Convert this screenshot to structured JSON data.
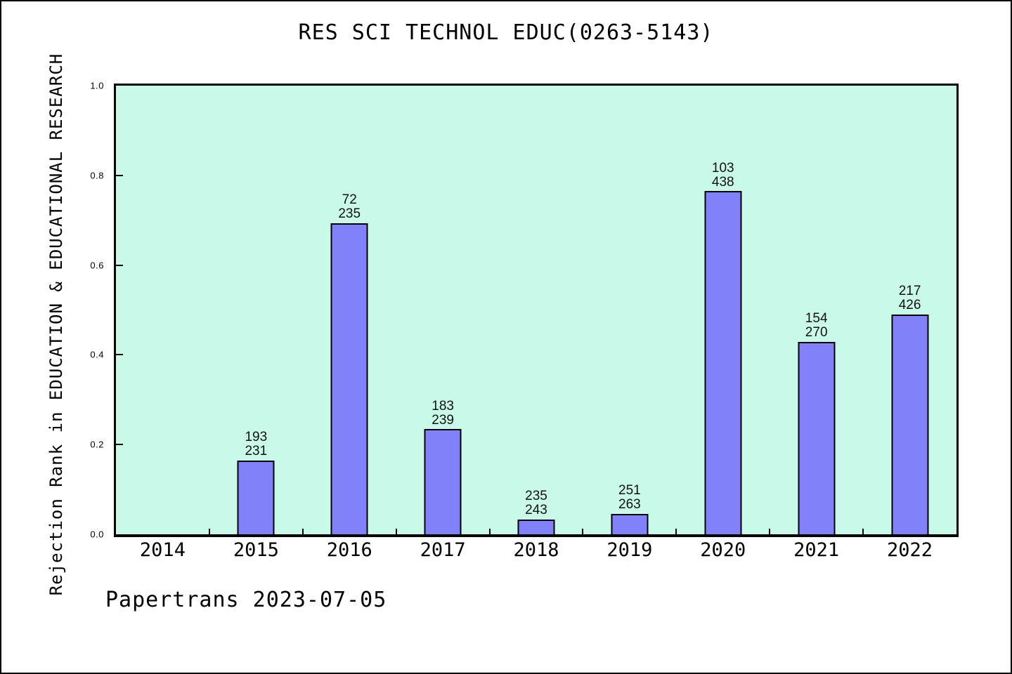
{
  "chart": {
    "title": "RES SCI TECHNOL EDUC(0263-5143)",
    "ylabel": "Rejection Rank in EDUCATION & EDUCATIONAL RESEARCH",
    "footer": "Papertrans 2023-07-05"
  },
  "chart_data": {
    "type": "bar",
    "title": "RES SCI TECHNOL EDUC(0263-5143)",
    "xlabel": "",
    "ylabel": "Rejection Rank in EDUCATION & EDUCATIONAL RESEARCH",
    "ylim": [
      0.0,
      1.0
    ],
    "yticks": [
      0.0,
      0.2,
      0.4,
      0.6,
      0.8,
      1.0
    ],
    "grid": false,
    "legend_position": "none",
    "categories": [
      "2014",
      "2015",
      "2016",
      "2017",
      "2018",
      "2019",
      "2020",
      "2021",
      "2022"
    ],
    "bars": [
      {
        "year": "2014",
        "rank": null,
        "total": null,
        "value": null
      },
      {
        "year": "2015",
        "rank": 193,
        "total": 231,
        "value": 0.1645
      },
      {
        "year": "2016",
        "rank": 72,
        "total": 235,
        "value": 0.6936
      },
      {
        "year": "2017",
        "rank": 183,
        "total": 239,
        "value": 0.2343
      },
      {
        "year": "2018",
        "rank": 235,
        "total": 243,
        "value": 0.0329
      },
      {
        "year": "2019",
        "rank": 251,
        "total": 263,
        "value": 0.0456
      },
      {
        "year": "2020",
        "rank": 103,
        "total": 438,
        "value": 0.7648
      },
      {
        "year": "2021",
        "rank": 154,
        "total": 270,
        "value": 0.4296
      },
      {
        "year": "2022",
        "rank": 217,
        "total": 426,
        "value": 0.4906
      }
    ],
    "colors": {
      "bar_fill": "#8181fa",
      "bar_edge": "#000000",
      "plot_bg": "#c9fae9",
      "page_bg": "#ffffff",
      "text": "#000000"
    }
  }
}
